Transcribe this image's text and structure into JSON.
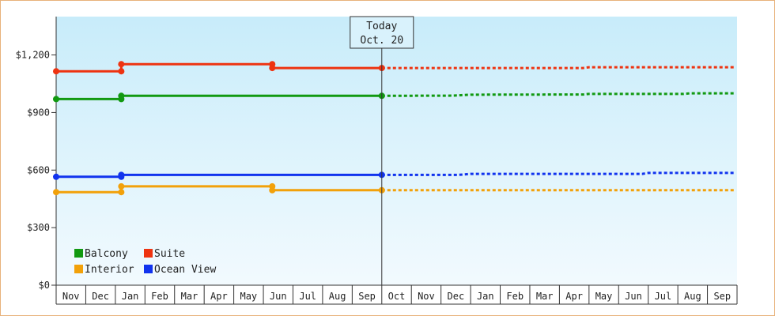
{
  "chart_data": {
    "type": "line",
    "title": "",
    "xlabel": "",
    "ylabel": "",
    "ylim": [
      0,
      1400
    ],
    "y_ticks": [
      0,
      300,
      600,
      900,
      1200
    ],
    "y_tick_labels": [
      "$0",
      "$300",
      "$600",
      "$900",
      "$1,200"
    ],
    "x_tick_labels": [
      "Nov",
      "Dec",
      "Jan",
      "Feb",
      "Mar",
      "Apr",
      "May",
      "Jun",
      "Jul",
      "Aug",
      "Sep",
      "Oct",
      "Nov",
      "Dec",
      "Jan",
      "Feb",
      "Mar",
      "Apr",
      "May",
      "Jun",
      "Jul",
      "Aug",
      "Sep"
    ],
    "grid": false,
    "legend_position": "bottom-left",
    "today_marker": {
      "line1": "Today",
      "line2": "Oct. 20",
      "month_index": 11.0
    },
    "series": [
      {
        "name": "Balcony",
        "color": "#119911",
        "points": [
          [
            0,
            970
          ],
          [
            2.2,
            970
          ],
          [
            2.2,
            987
          ],
          [
            11.0,
            987
          ]
        ],
        "markers": [
          [
            0,
            970
          ],
          [
            2.2,
            970
          ],
          [
            2.2,
            987
          ],
          [
            11.0,
            987
          ]
        ],
        "forecast": [
          [
            11.0,
            987
          ],
          [
            13.4,
            988
          ],
          [
            14.0,
            993
          ],
          [
            17.8,
            994
          ],
          [
            18.0,
            997
          ],
          [
            21.2,
            997
          ],
          [
            21.4,
            1000
          ],
          [
            22.9,
            1000
          ]
        ]
      },
      {
        "name": "Suite",
        "color": "#ee3311",
        "points": [
          [
            0,
            1115
          ],
          [
            2.2,
            1115
          ],
          [
            2.2,
            1152
          ],
          [
            7.3,
            1152
          ],
          [
            7.3,
            1132
          ],
          [
            11.0,
            1132
          ]
        ],
        "markers": [
          [
            0,
            1115
          ],
          [
            2.2,
            1115
          ],
          [
            2.2,
            1152
          ],
          [
            7.3,
            1152
          ],
          [
            7.3,
            1132
          ],
          [
            11.0,
            1132
          ]
        ],
        "forecast": [
          [
            11.0,
            1132
          ],
          [
            17.8,
            1132
          ],
          [
            18.0,
            1136
          ],
          [
            22.9,
            1136
          ]
        ]
      },
      {
        "name": "Interior",
        "color": "#f2a10a",
        "points": [
          [
            0,
            485
          ],
          [
            2.2,
            485
          ],
          [
            2.2,
            515
          ],
          [
            7.3,
            515
          ],
          [
            7.3,
            495
          ],
          [
            11.0,
            495
          ]
        ],
        "markers": [
          [
            0,
            485
          ],
          [
            2.2,
            485
          ],
          [
            2.2,
            515
          ],
          [
            7.3,
            515
          ],
          [
            7.3,
            495
          ],
          [
            11.0,
            495
          ]
        ],
        "forecast": [
          [
            11.0,
            495
          ],
          [
            22.9,
            495
          ]
        ]
      },
      {
        "name": "Ocean View",
        "color": "#1133ee",
        "points": [
          [
            0,
            565
          ],
          [
            2.2,
            565
          ],
          [
            2.2,
            575
          ],
          [
            11.0,
            575
          ]
        ],
        "markers": [
          [
            0,
            565
          ],
          [
            2.2,
            565
          ],
          [
            2.2,
            575
          ],
          [
            11.0,
            575
          ]
        ],
        "forecast": [
          [
            11.0,
            575
          ],
          [
            13.6,
            575
          ],
          [
            14.0,
            580
          ],
          [
            19.8,
            580
          ],
          [
            20.0,
            585
          ],
          [
            22.9,
            585
          ]
        ]
      }
    ],
    "legend_order": [
      "Balcony",
      "Suite",
      "Interior",
      "Ocean View"
    ]
  }
}
